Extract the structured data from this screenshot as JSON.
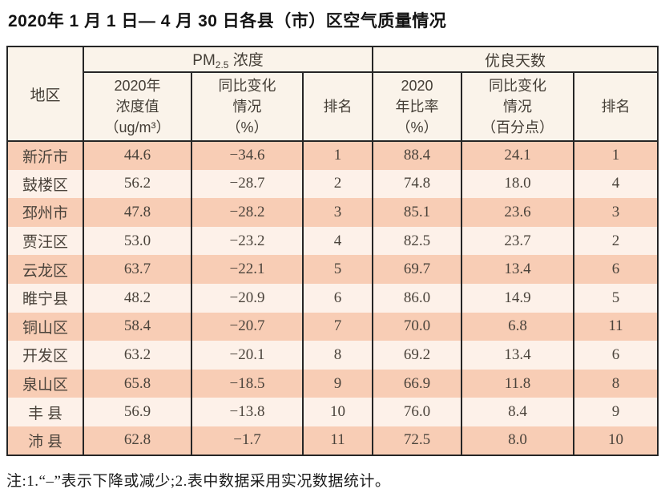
{
  "page": {
    "title": "2020年 1 月 1 日— 4 月 30 日各县（市）区空气质量情况",
    "footnote": "注:1.“–”表示下降或减少;2.表中数据采用实况数据统计。"
  },
  "colors": {
    "row_odd": "#f8cdb5",
    "row_even": "#fdf1e9",
    "header_bg": "#faf3ea",
    "border": "#262626",
    "text_data": "#4a433b",
    "text_header": "#443e36"
  },
  "table": {
    "corner_header": "地区",
    "group_headers": [
      {
        "prefix": "PM",
        "sub": "2.5",
        "suffix": " 浓度"
      },
      {
        "text": "优良天数"
      }
    ],
    "sub_headers": [
      {
        "lines": [
          "2020年",
          "浓度值",
          "（ug/m³）"
        ]
      },
      {
        "lines": [
          "同比变化",
          "情况",
          "（%）"
        ]
      },
      {
        "lines": [
          "排名"
        ]
      },
      {
        "lines": [
          "2020",
          "年比率",
          "（%）"
        ]
      },
      {
        "lines": [
          "同比变化",
          "情况",
          "（百分点）"
        ]
      },
      {
        "lines": [
          "排名"
        ]
      }
    ],
    "rows": [
      {
        "region": "新沂市",
        "values": [
          "44.6",
          "−34.6",
          "1",
          "88.4",
          "24.1",
          "1"
        ]
      },
      {
        "region": "鼓楼区",
        "values": [
          "56.2",
          "−28.7",
          "2",
          "74.8",
          "18.0",
          "4"
        ]
      },
      {
        "region": "邳州市",
        "values": [
          "47.8",
          "−28.2",
          "3",
          "85.1",
          "23.6",
          "3"
        ]
      },
      {
        "region": "贾汪区",
        "values": [
          "53.0",
          "−23.2",
          "4",
          "82.5",
          "23.7",
          "2"
        ]
      },
      {
        "region": "云龙区",
        "values": [
          "63.7",
          "−22.1",
          "5",
          "69.7",
          "13.4",
          "6"
        ]
      },
      {
        "region": "睢宁县",
        "values": [
          "48.2",
          "−20.9",
          "6",
          "86.0",
          "14.9",
          "5"
        ]
      },
      {
        "region": "铜山区",
        "values": [
          "58.4",
          "−20.7",
          "7",
          "70.0",
          "6.8",
          "11"
        ]
      },
      {
        "region": "开发区",
        "values": [
          "63.2",
          "−20.1",
          "8",
          "69.2",
          "13.4",
          "6"
        ]
      },
      {
        "region": "泉山区",
        "values": [
          "65.8",
          "−18.5",
          "9",
          "66.9",
          "11.8",
          "8"
        ]
      },
      {
        "region": "丰 县",
        "values": [
          "56.9",
          "−13.8",
          "10",
          "76.0",
          "8.4",
          "9"
        ]
      },
      {
        "region": "沛 县",
        "values": [
          "62.8",
          "−1.7",
          "11",
          "72.5",
          "8.0",
          "10"
        ]
      }
    ]
  }
}
